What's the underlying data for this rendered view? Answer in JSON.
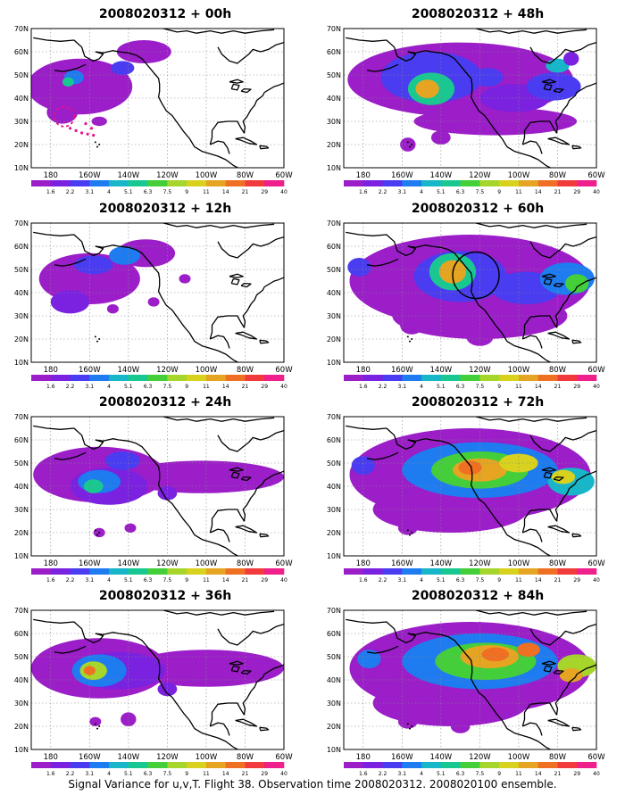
{
  "page": {
    "caption": "Signal Variance for u,v,T. Flight 38. Observation time 2008020312. 2008020100 ensemble."
  },
  "map": {
    "lat_labels": [
      "70N",
      "60N",
      "50N",
      "40N",
      "30N",
      "20N",
      "10N"
    ],
    "lon_labels": [
      "180",
      "160W",
      "140W",
      "120W",
      "100W",
      "80W",
      "60W"
    ],
    "colorbar_labels": [
      "1.6",
      "2.2",
      "3.1",
      "4",
      "5.1",
      "6.3",
      "7.5",
      "9",
      "11",
      "14",
      "21",
      "29",
      "40"
    ],
    "colorbar_colors": [
      "#9b1ec8",
      "#7a22e0",
      "#4a3cf0",
      "#1e7cf0",
      "#17b6c8",
      "#19c890",
      "#44cf3a",
      "#a6d62c",
      "#d8d21e",
      "#e6a423",
      "#ef7022",
      "#f03a3c",
      "#ef1f8c"
    ]
  },
  "panels": [
    {
      "title": "2008020312 + 00h",
      "marker": "dashed-circle"
    },
    {
      "title": "2008020312 + 12h"
    },
    {
      "title": "2008020312 + 24h"
    },
    {
      "title": "2008020312 + 36h"
    },
    {
      "title": "2008020312 + 48h"
    },
    {
      "title": "2008020312 + 60h",
      "marker": "circle"
    },
    {
      "title": "2008020312 + 72h"
    },
    {
      "title": "2008020312 + 84h"
    }
  ]
}
